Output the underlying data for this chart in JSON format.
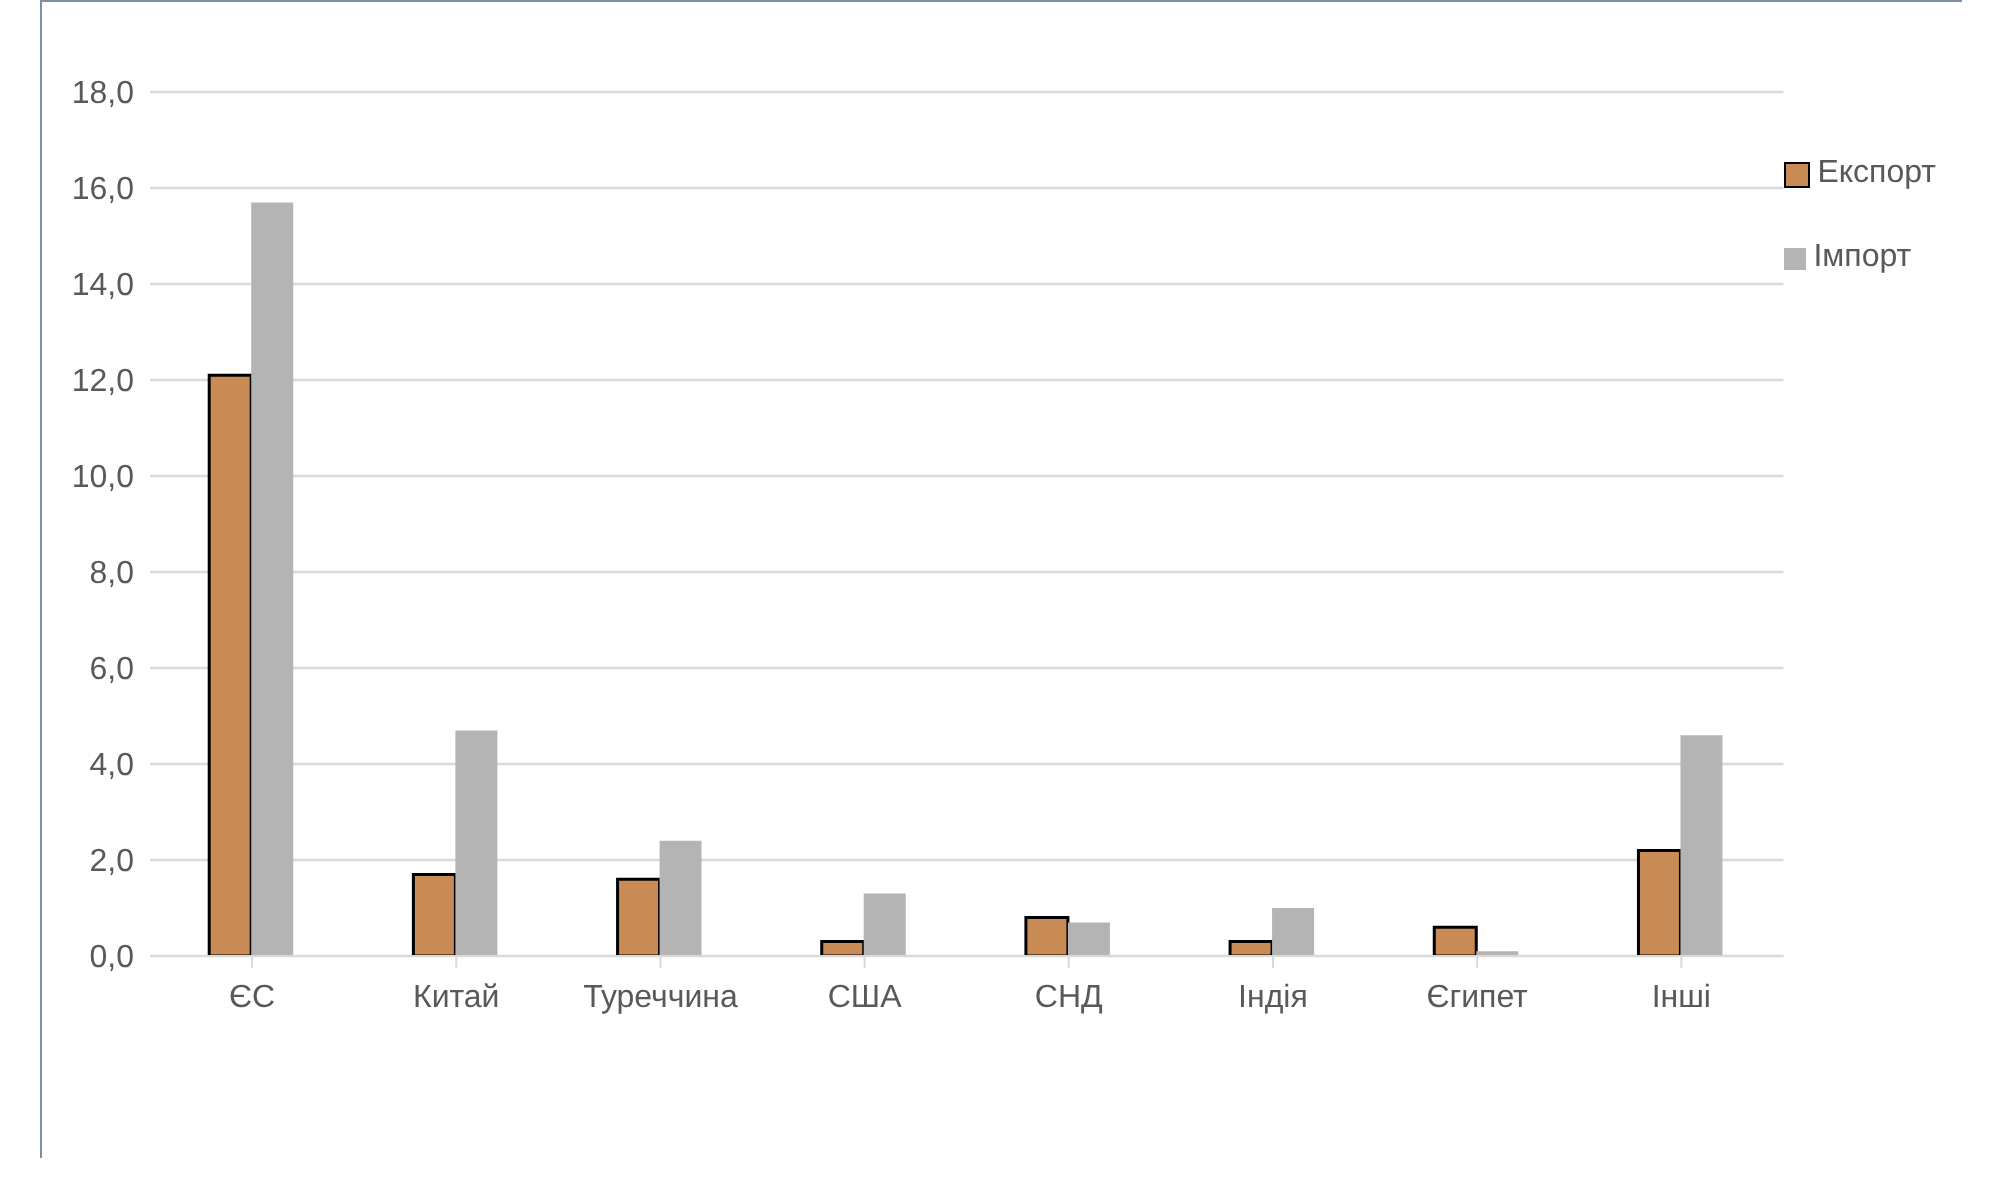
{
  "chart_data": {
    "type": "bar",
    "categories": [
      "ЄС",
      "Китай",
      "Туреччина",
      "США",
      "СНД",
      "Індія",
      "Єгипет",
      "Інші"
    ],
    "series": [
      {
        "name": "Експорт",
        "color": "#c98b56",
        "values": [
          12.1,
          1.7,
          1.6,
          0.3,
          0.8,
          0.3,
          0.6,
          2.2
        ]
      },
      {
        "name": "Імпорт",
        "color": "#b4b4b4",
        "values": [
          15.7,
          4.7,
          2.4,
          1.3,
          0.7,
          1.0,
          0.1,
          4.6
        ]
      }
    ],
    "ylim": [
      0,
      18
    ],
    "yticks": [
      {
        "value": 0,
        "label": "0,0"
      },
      {
        "value": 2,
        "label": "2,0"
      },
      {
        "value": 4,
        "label": "4,0"
      },
      {
        "value": 6,
        "label": "6,0"
      },
      {
        "value": 8,
        "label": "8,0"
      },
      {
        "value": 10,
        "label": "10,0"
      },
      {
        "value": 12,
        "label": "12,0"
      },
      {
        "value": 14,
        "label": "14,0"
      },
      {
        "value": 16,
        "label": "16,0"
      },
      {
        "value": 18,
        "label": "18,0"
      }
    ],
    "grid": "y",
    "legend": "top right"
  }
}
